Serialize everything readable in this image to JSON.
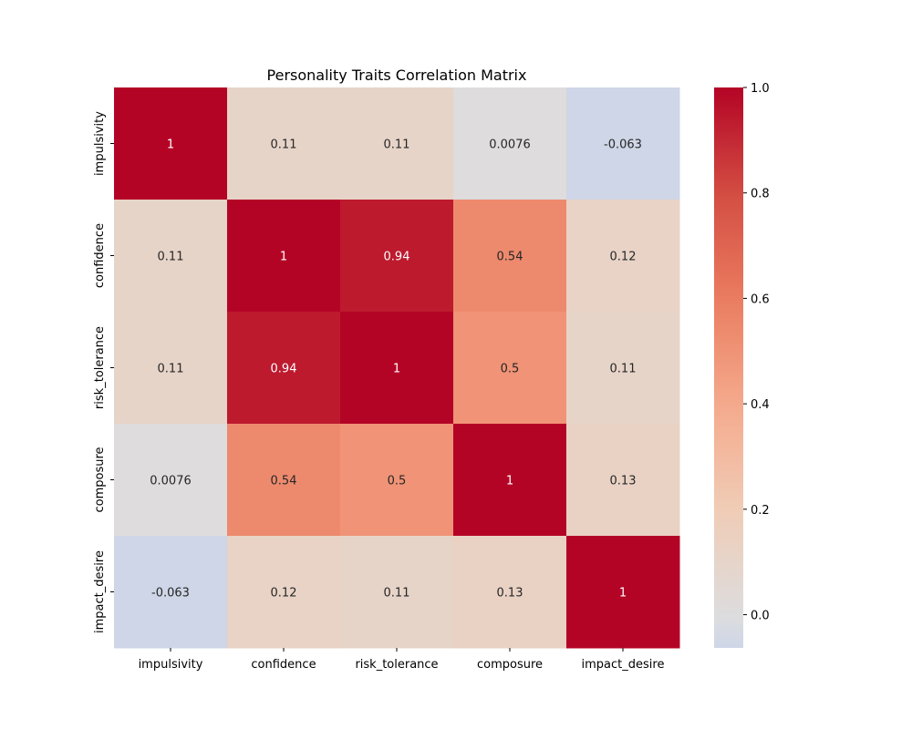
{
  "chart_data": {
    "type": "heatmap",
    "title": "Personality Traits Correlation Matrix",
    "xlabel": "",
    "ylabel": "",
    "x_categories": [
      "impulsivity",
      "confidence",
      "risk_tolerance",
      "composure",
      "impact_desire"
    ],
    "y_categories": [
      "impulsivity",
      "confidence",
      "risk_tolerance",
      "composure",
      "impact_desire"
    ],
    "values": [
      [
        1,
        0.11,
        0.11,
        0.0076,
        -0.063
      ],
      [
        0.11,
        1,
        0.94,
        0.54,
        0.12
      ],
      [
        0.11,
        0.94,
        1,
        0.5,
        0.11
      ],
      [
        0.0076,
        0.54,
        0.5,
        1,
        0.13
      ],
      [
        -0.063,
        0.12,
        0.11,
        0.13,
        1
      ]
    ],
    "value_labels": [
      [
        "1",
        "0.11",
        "0.11",
        "0.0076",
        "-0.063"
      ],
      [
        "0.11",
        "1",
        "0.94",
        "0.54",
        "0.12"
      ],
      [
        "0.11",
        "0.94",
        "1",
        "0.5",
        "0.11"
      ],
      [
        "0.0076",
        "0.54",
        "0.5",
        "1",
        "0.13"
      ],
      [
        "-0.063",
        "0.12",
        "0.11",
        "0.13",
        "1"
      ]
    ],
    "colormap": "coolwarm",
    "color_range": [
      -0.063,
      1
    ],
    "colorbar": {
      "ticks": [
        0.0,
        0.2,
        0.4,
        0.6,
        0.8,
        1.0
      ],
      "tick_labels": [
        "0.0",
        "0.2",
        "0.4",
        "0.6",
        "0.8",
        "1.0"
      ]
    },
    "grid": false
  }
}
